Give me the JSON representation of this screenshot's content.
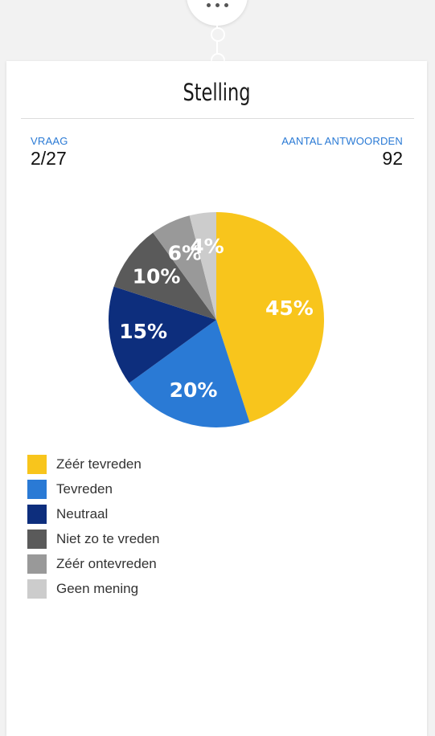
{
  "header": {
    "title": "Stelling"
  },
  "stats": {
    "question_label": "VRAAG",
    "question_value": "2/27",
    "answers_label": "AANTAL ANTWOORDEN",
    "answers_value": "92"
  },
  "chart_data": {
    "type": "pie",
    "categories": [
      "Zéér tevreden",
      "Tevreden",
      "Neutraal",
      "Niet zo te vreden",
      "Zéér ontevreden",
      "Geen mening"
    ],
    "values": [
      45,
      20,
      15,
      10,
      6,
      4
    ],
    "labels": [
      "45%",
      "20%",
      "15%",
      "10%",
      "6%",
      "4%"
    ],
    "colors": [
      "#f8c51c",
      "#2a7ad5",
      "#0d2e7d",
      "#5a5a5a",
      "#999999",
      "#cccccc"
    ],
    "start": "12 o'clock",
    "direction": "clockwise",
    "legend_placement": "bottom-left"
  }
}
